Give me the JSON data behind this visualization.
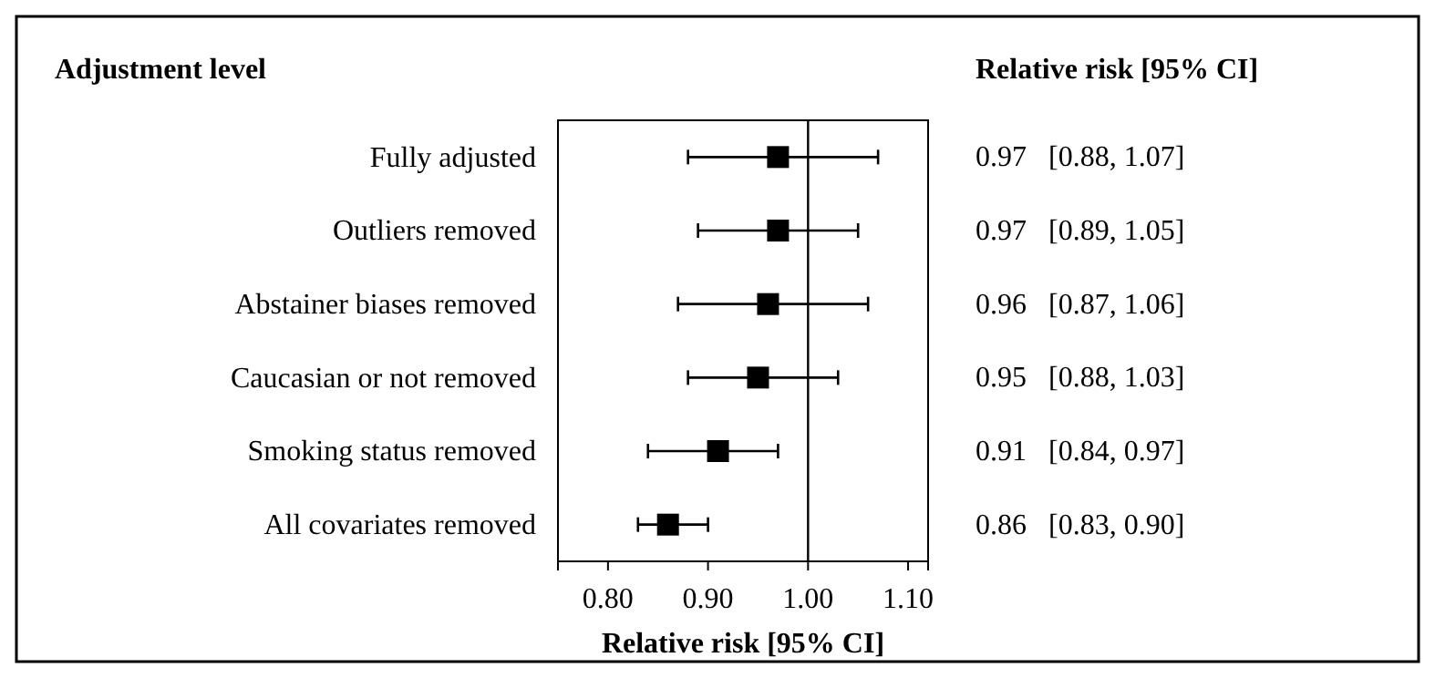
{
  "chart_data": {
    "type": "bar",
    "orientation": "horizontal",
    "xlabel": "Relative risk [95% CI]",
    "annotations": [
      "Adjustment level",
      "Relative risk [95% CI]"
    ],
    "categories": [
      "Fully adjusted",
      "Outliers removed",
      "Abstainer biases removed",
      "Caucasian or not removed",
      "Smoking status removed",
      "All covariates removed"
    ],
    "series": [
      {
        "type": "scatter",
        "color": "#000000",
        "values": [
          0.97,
          0.97,
          0.96,
          0.95,
          0.91,
          0.86
        ],
        "errors": [
          [
            0.88,
            1.07
          ],
          [
            0.89,
            1.05
          ],
          [
            0.87,
            1.06
          ],
          [
            0.88,
            1.03
          ],
          [
            0.84,
            0.97
          ],
          [
            0.83,
            0.9
          ]
        ],
        "value_labels": [
          "0.97   [0.88, 1.07]",
          "0.97   [0.89, 1.05]",
          "0.96   [0.87, 1.06]",
          "0.95   [0.88, 1.03]",
          "0.91   [0.84, 0.97]",
          "0.86   [0.83, 0.90]"
        ]
      }
    ],
    "marker": "square",
    "xlim": [
      0.75,
      1.12
    ],
    "xticks": [
      {
        "value": 0.8,
        "label": "0.80"
      },
      {
        "value": 0.9,
        "label": "0.90"
      },
      {
        "value": 1.0,
        "label": "1.00"
      },
      {
        "value": 1.1,
        "label": "1.10"
      }
    ],
    "ref_lines": [
      {
        "axis": "x",
        "value": 1.0,
        "color": "#000000"
      }
    ],
    "grid": false
  }
}
